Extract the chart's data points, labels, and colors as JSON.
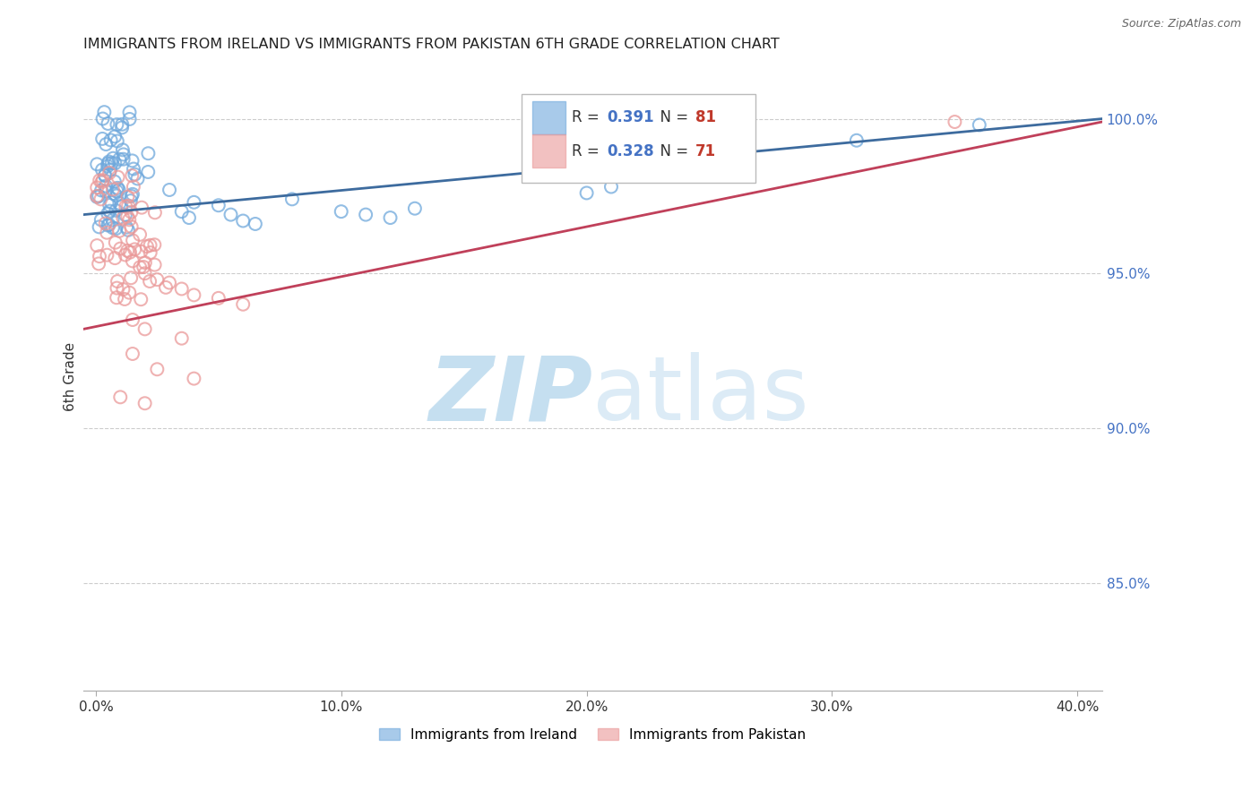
{
  "title": "IMMIGRANTS FROM IRELAND VS IMMIGRANTS FROM PAKISTAN 6TH GRADE CORRELATION CHART",
  "source": "Source: ZipAtlas.com",
  "xlabel_vals": [
    0.0,
    0.1,
    0.2,
    0.3,
    0.4
  ],
  "ylabel_label": "6th Grade",
  "ylabel_vals": [
    0.85,
    0.9,
    0.95,
    1.0
  ],
  "xlim": [
    -0.005,
    0.41
  ],
  "ylim": [
    0.815,
    1.018
  ],
  "ireland_R": 0.391,
  "ireland_N": 81,
  "pakistan_R": 0.328,
  "pakistan_N": 71,
  "ireland_color": "#6fa8dc",
  "pakistan_color": "#ea9999",
  "ireland_line_color": "#3d6b9e",
  "pakistan_line_color": "#c0405a",
  "legend_label_ireland": "Immigrants from Ireland",
  "legend_label_pakistan": "Immigrants from Pakistan"
}
